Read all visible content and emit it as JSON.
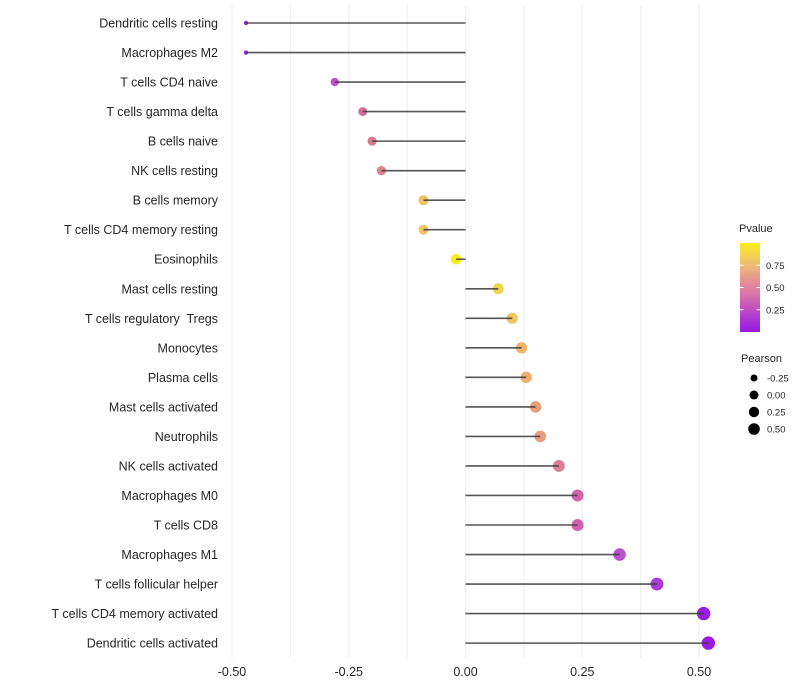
{
  "chart_data": {
    "type": "scatter",
    "variant": "lollipop",
    "title": "",
    "xlabel": "",
    "ylabel": "",
    "x_tick_labels": [
      "-0.50",
      "-0.25",
      "0.00",
      "0.25",
      "0.50"
    ],
    "x_tick_values": [
      -0.5,
      -0.25,
      0,
      0.25,
      0.5
    ],
    "xlim": [
      -0.56,
      0.55
    ],
    "grid": "vertical-only",
    "legend_position": "right",
    "rows": [
      {
        "label": "Dendritic cells resting",
        "pearson": -0.47,
        "color": "#8E25DA"
      },
      {
        "label": "Macrophages M2",
        "pearson": -0.47,
        "color": "#8E25DA"
      },
      {
        "label": "T cells CD4 naive",
        "pearson": -0.28,
        "color": "#C150C9"
      },
      {
        "label": "T cells gamma delta",
        "pearson": -0.22,
        "color": "#CE7097"
      },
      {
        "label": "B cells naive",
        "pearson": -0.2,
        "color": "#D77A8D"
      },
      {
        "label": "NK cells resting",
        "pearson": -0.18,
        "color": "#DC8289"
      },
      {
        "label": "B cells memory",
        "pearson": -0.09,
        "color": "#F0C163"
      },
      {
        "label": "T cells CD4 memory resting",
        "pearson": -0.09,
        "color": "#F0C565"
      },
      {
        "label": "Eosinophils",
        "pearson": -0.02,
        "color": "#F5EC15"
      },
      {
        "label": "Mast cells resting",
        "pearson": 0.07,
        "color": "#F3D44D"
      },
      {
        "label": "T cells regulatory  Tregs",
        "pearson": 0.1,
        "color": "#F1C45F"
      },
      {
        "label": "Monocytes",
        "pearson": 0.12,
        "color": "#EFB56C"
      },
      {
        "label": "Plasma cells",
        "pearson": 0.13,
        "color": "#EEAF70"
      },
      {
        "label": "Mast cells activated",
        "pearson": 0.15,
        "color": "#EA9E7A"
      },
      {
        "label": "Neutrophils",
        "pearson": 0.16,
        "color": "#E99C7D"
      },
      {
        "label": "NK cells activated",
        "pearson": 0.2,
        "color": "#DD7E97"
      },
      {
        "label": "Macrophages M0",
        "pearson": 0.24,
        "color": "#D263AB"
      },
      {
        "label": "T cells CD8",
        "pearson": 0.24,
        "color": "#D060AE"
      },
      {
        "label": "Macrophages M1",
        "pearson": 0.33,
        "color": "#BC50CE"
      },
      {
        "label": "T cells follicular helper",
        "pearson": 0.41,
        "color": "#AC3AD7"
      },
      {
        "label": "T cells CD4 memory activated",
        "pearson": 0.51,
        "color": "#9A1CE0"
      },
      {
        "label": "Dendritic cells activated",
        "pearson": 0.52,
        "color": "#991AE0"
      }
    ]
  },
  "legend_pvalue": {
    "title": "Pvalue",
    "tick_labels": [
      "0.75",
      "0.50",
      "0.25"
    ],
    "tick_values": [
      0.75,
      0.5,
      0.25
    ],
    "range": [
      1.0,
      0.0
    ],
    "gradient_top_to_bottom": [
      "#FAEA1E",
      "#F5D255",
      "#EEB37E",
      "#E49095",
      "#D877A6",
      "#C355BE",
      "#AC34D4",
      "#9A17E0"
    ]
  },
  "legend_pearson": {
    "title": "Pearson",
    "items": [
      {
        "label": "-0.25",
        "r": 3.5
      },
      {
        "label": "0.00",
        "r": 4.5
      },
      {
        "label": "0.25",
        "r": 5.2
      },
      {
        "label": "0.50",
        "r": 5.8
      }
    ]
  },
  "colors": {
    "stem": "#3D3D3D",
    "grid": "#EFEFEF",
    "text": "#262626",
    "legend_dot": "#000000",
    "background": "#FFFFFF"
  }
}
